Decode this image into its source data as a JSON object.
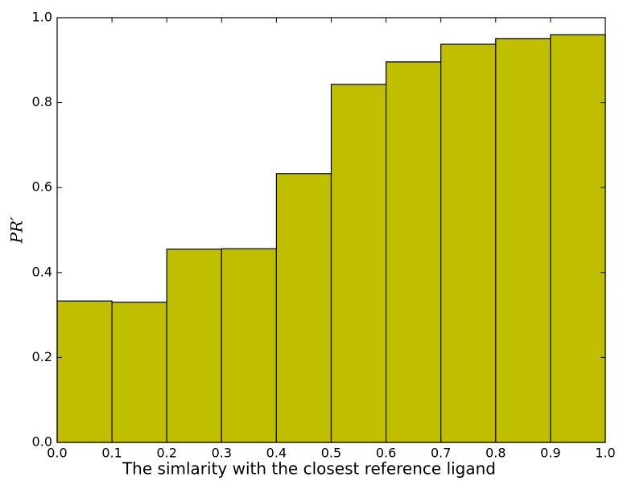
{
  "chart_data": {
    "type": "histogram",
    "xlabel": "The simlarity with the closest reference ligand",
    "ylabel": "PR′",
    "bins": [
      0.0,
      0.1,
      0.2,
      0.3,
      0.4,
      0.5,
      0.6,
      0.7,
      0.8,
      0.9,
      1.0
    ],
    "values": [
      0.333,
      0.33,
      0.455,
      0.456,
      0.633,
      0.843,
      0.896,
      0.9375,
      0.951,
      0.96
    ],
    "color": "#bfbf00",
    "xlim": [
      0,
      1
    ],
    "ylim": [
      0,
      1
    ],
    "xticks": [
      {
        "value": 0,
        "label": "0.0"
      },
      0.1,
      0.2,
      0.3,
      0.4,
      0.5,
      0.6,
      0.7,
      0.8,
      0.9,
      {
        "value": 1,
        "label": "1.0"
      }
    ],
    "yticks": [
      {
        "value": 0,
        "label": "0.0"
      },
      0.2,
      0.4,
      0.6,
      0.8,
      {
        "value": 1,
        "label": "1.0"
      }
    ]
  }
}
